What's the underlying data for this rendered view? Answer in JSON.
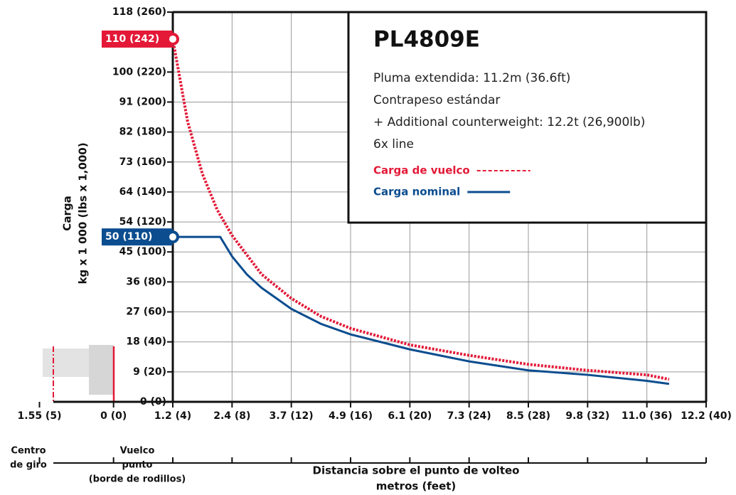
{
  "chart_data": {
    "type": "line",
    "title": "PL4809E",
    "notes": [
      "Pluma extendida: 11.2m (36.6ft)",
      "Contrapeso estándar",
      "+ Additional counterweight: 12.2t (26,900lb)",
      "6x line"
    ],
    "xlabel": [
      "Distancia sobre el punto de volteo",
      "metros (feet)"
    ],
    "ylabel": [
      "Carga",
      "kg x 1 000 (lbs x 1,000)"
    ],
    "annotations": [
      [
        "Centro",
        "de giro"
      ],
      [
        "Vuelco",
        "punto",
        "(borde de rodillos)"
      ]
    ],
    "xlim": [
      -5,
      40
    ],
    "ylim": [
      0,
      260
    ],
    "xticks": [
      {
        "value": -5,
        "label": "1.55 (5)"
      },
      {
        "value": 0,
        "label": "0 (0)"
      },
      {
        "value": 4,
        "label": "1.2 (4)"
      },
      {
        "value": 8,
        "label": "2.4 (8)"
      },
      {
        "value": 12,
        "label": "3.7 (12)"
      },
      {
        "value": 16,
        "label": "4.9 (16)"
      },
      {
        "value": 20,
        "label": "6.1 (20)"
      },
      {
        "value": 24,
        "label": "7.3 (24)"
      },
      {
        "value": 28,
        "label": "8.5 (28)"
      },
      {
        "value": 32,
        "label": "9.8 (32)"
      },
      {
        "value": 36,
        "label": "11.0 (36)"
      },
      {
        "value": 40,
        "label": "12.2 (40)"
      }
    ],
    "yticks": [
      {
        "value": 0,
        "label": "0 (0)"
      },
      {
        "value": 20,
        "label": "9 (20)"
      },
      {
        "value": 40,
        "label": "18 (40)"
      },
      {
        "value": 60,
        "label": "27 (60)"
      },
      {
        "value": 80,
        "label": "36 (80)"
      },
      {
        "value": 100,
        "label": "45 (100)"
      },
      {
        "value": 120,
        "label": "54 (120)"
      },
      {
        "value": 140,
        "label": "64 (140)"
      },
      {
        "value": 160,
        "label": "73 (160)"
      },
      {
        "value": 180,
        "label": "82 (180)"
      },
      {
        "value": 200,
        "label": "91 (200)"
      },
      {
        "value": 220,
        "label": "100 (220)"
      },
      {
        "value": 260,
        "label": "118 (260)"
      }
    ],
    "markers": [
      {
        "value": 242,
        "label": "110 (242)",
        "color": "#e31937"
      },
      {
        "value": 110,
        "label": "50 (110)",
        "color": "#0b4d8f"
      }
    ],
    "grid": true,
    "series": [
      {
        "name": "Carga de vuelco",
        "color": "#e31937",
        "dashed": true,
        "x": [
          4,
          5,
          6,
          7,
          8,
          10,
          12,
          14,
          16,
          20,
          24,
          28,
          32,
          36,
          37.5
        ],
        "values": [
          242,
          187,
          152,
          128,
          111,
          85,
          69,
          57,
          49,
          38,
          31,
          25,
          21,
          18,
          15
        ]
      },
      {
        "name": "Carga nominal",
        "color": "#0b4d8f",
        "dashed": false,
        "x": [
          4,
          7.2,
          8,
          9,
          10,
          12,
          14,
          16,
          20,
          24,
          28,
          32,
          36,
          37.5
        ],
        "values": [
          110,
          110,
          97,
          85,
          76,
          62,
          52,
          45,
          35,
          27,
          21,
          18,
          14,
          12
        ]
      }
    ]
  }
}
